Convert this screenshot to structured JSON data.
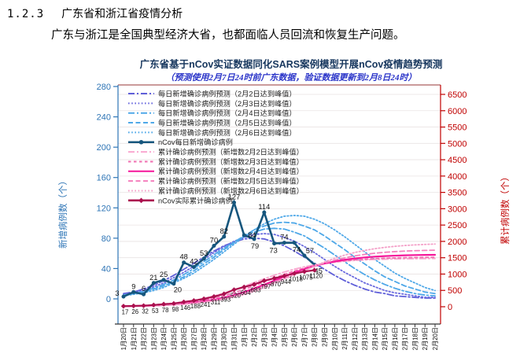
{
  "document": {
    "section_number": "1.2.3",
    "section_title": "广东省和浙江省疫情分析",
    "paragraph": "广东与浙江是全国典型经济大省，也都面临人员回流和恢复生产问题。"
  },
  "chart_data": {
    "type": "line",
    "title": "广东省基于nCov实证数据同化SARS案例模型开展nCov疫情趋势预测",
    "subtitle": "（预测使用2月7日24时前广东数据，验证数据更新到2月8日24时）",
    "left_axis": {
      "label": "新增病例数（个）",
      "ticks": [
        0,
        40,
        80,
        120,
        160,
        200,
        240,
        280
      ],
      "min": 0,
      "max": 280,
      "color": "#2e75b6"
    },
    "right_axis": {
      "label": "累计病例数（个）",
      "ticks": [
        0,
        500,
        1000,
        1500,
        2000,
        2500,
        3000,
        3500,
        4000,
        4500,
        5000,
        5500,
        6000,
        6500
      ],
      "min": 0,
      "max": 6500,
      "color": "#c00000"
    },
    "x_categories": [
      "1月20日",
      "1月21日",
      "1月22日",
      "1月23日",
      "1月24日",
      "1月25日",
      "1月26日",
      "1月27日",
      "1月28日",
      "1月29日",
      "1月30日",
      "1月31日",
      "2月1日",
      "2月2日",
      "2月3日",
      "2月4日",
      "2月5日",
      "2月6日",
      "2月7日",
      "2月8日",
      "2月9日",
      "2月10日",
      "2月11日",
      "2月12日",
      "2月13日",
      "2月14日",
      "2月15日",
      "2月16日",
      "2月17日",
      "2月18日",
      "2月19日",
      "2月20日"
    ],
    "legend_position": "top-left-inside",
    "grid": "horizontal",
    "series": [
      {
        "name": "每日新增确诊病例预测（2月2日达到峰值）",
        "axis": "left",
        "style": "dashdot",
        "color": "#5f5fd9",
        "values": [
          7,
          9,
          13,
          18,
          24,
          31,
          39,
          47,
          55,
          63,
          70,
          75,
          79,
          80,
          79,
          75,
          70,
          63,
          55,
          47,
          39,
          31,
          24,
          18,
          13,
          9,
          7,
          4,
          3,
          2,
          1,
          1
        ]
      },
      {
        "name": "每日新增确诊病例预测（2月3日达到峰值）",
        "axis": "left",
        "style": "dotted",
        "color": "#6a6ade",
        "values": [
          6,
          8,
          11,
          16,
          21,
          28,
          35,
          43,
          52,
          61,
          69,
          76,
          81,
          85,
          86,
          85,
          81,
          76,
          69,
          61,
          52,
          43,
          35,
          28,
          21,
          16,
          11,
          8,
          6,
          4,
          2,
          2
        ]
      },
      {
        "name": "每日新增确诊病例预测（2月4日达到峰值）",
        "axis": "left",
        "style": "dashdot",
        "color": "#4fa8e8",
        "values": [
          5,
          7,
          10,
          14,
          19,
          25,
          32,
          40,
          49,
          58,
          67,
          75,
          83,
          88,
          92,
          93,
          92,
          88,
          83,
          75,
          67,
          58,
          49,
          40,
          32,
          25,
          19,
          14,
          10,
          7,
          5,
          4
        ]
      },
      {
        "name": "每日新增确诊病例预测（2月5日达到峰值）",
        "axis": "left",
        "style": "dashed",
        "color": "#4fa8e8",
        "values": [
          5,
          7,
          9,
          13,
          17,
          23,
          29,
          37,
          46,
          55,
          65,
          74,
          83,
          91,
          96,
          100,
          101,
          100,
          96,
          91,
          83,
          74,
          65,
          55,
          46,
          37,
          29,
          23,
          17,
          13,
          9,
          7
        ]
      },
      {
        "name": "每日新增确诊病例预测（2月6日达到峰值）",
        "axis": "left",
        "style": "dotted",
        "color": "#4fa8e8",
        "values": [
          4,
          6,
          8,
          11,
          15,
          21,
          27,
          34,
          43,
          52,
          62,
          72,
          82,
          91,
          99,
          105,
          109,
          110,
          109,
          105,
          99,
          91,
          82,
          72,
          62,
          52,
          43,
          34,
          27,
          21,
          15,
          11
        ]
      },
      {
        "name": "nCov每日新增确诊病例",
        "axis": "left",
        "style": "solid",
        "marker": "circle",
        "color": "#16567d",
        "data_labels": true,
        "values": [
          3,
          9,
          6,
          21,
          25,
          20,
          48,
          42,
          53,
          70,
          82,
          127,
          84,
          79,
          114,
          73,
          74,
          74,
          57,
          45
        ]
      },
      {
        "name": "累计确诊病例预测（新增数2月2日达到峰值）",
        "axis": "right",
        "style": "dashdot",
        "color": "#f9a8d0",
        "values": [
          25,
          34,
          46,
          62,
          84,
          112,
          149,
          197,
          258,
          330,
          416,
          516,
          625,
          740,
          855,
          963,
          1064,
          1150,
          1223,
          1283,
          1331,
          1368,
          1396,
          1418,
          1434,
          1446,
          1455,
          1462,
          1467,
          1470,
          1473,
          1475
        ]
      },
      {
        "name": "累计确诊病例预测（新增数2月3日达到峰值）",
        "axis": "right",
        "style": "shortdash",
        "color": "#f06eb0",
        "values": [
          19,
          26,
          35,
          47,
          64,
          86,
          116,
          153,
          202,
          265,
          339,
          427,
          531,
          641,
          760,
          879,
          990,
          1093,
          1181,
          1256,
          1318,
          1367,
          1404,
          1433,
          1456,
          1473,
          1485,
          1494,
          1502,
          1506,
          1510,
          1512
        ]
      },
      {
        "name": "累计确诊病例预测（新增数2月4日达到峰值）",
        "axis": "right",
        "style": "solid",
        "color": "#f5169a",
        "values": [
          15,
          20,
          27,
          37,
          50,
          67,
          91,
          122,
          162,
          213,
          278,
          357,
          450,
          558,
          675,
          800,
          925,
          1042,
          1150,
          1243,
          1322,
          1387,
          1438,
          1478,
          1509,
          1533,
          1550,
          1563,
          1573,
          1581,
          1586,
          1589
        ]
      },
      {
        "name": "累计确诊病例预测（新增数2月5日达到峰值）",
        "axis": "right",
        "style": "dashed",
        "color": "#f580bd",
        "values": [
          14,
          19,
          25,
          34,
          47,
          63,
          84,
          112,
          148,
          194,
          253,
          326,
          413,
          516,
          632,
          756,
          875,
          994,
          1118,
          1234,
          1337,
          1425,
          1496,
          1556,
          1601,
          1638,
          1666,
          1687,
          1703,
          1715,
          1724,
          1730
        ]
      },
      {
        "name": "累计确诊病例预测（新增数2月6日达到峰值）",
        "axis": "right",
        "style": "dotted",
        "color": "#f4a0c8",
        "values": [
          13,
          18,
          24,
          32,
          43,
          57,
          76,
          101,
          133,
          174,
          226,
          291,
          371,
          468,
          581,
          708,
          846,
          975,
          1104,
          1242,
          1369,
          1482,
          1580,
          1659,
          1724,
          1776,
          1817,
          1849,
          1874,
          1893,
          1907,
          1919
        ]
      },
      {
        "name": "nCov实际累计确诊病例",
        "axis": "right",
        "style": "solid",
        "marker": "diamond",
        "color": "#ab104f",
        "data_labels": true,
        "values": [
          17,
          26,
          32,
          53,
          78,
          98,
          146,
          188,
          241,
          311,
          393,
          520,
          604,
          683,
          797,
          870,
          944,
          1018,
          1075,
          1120
        ]
      }
    ]
  }
}
